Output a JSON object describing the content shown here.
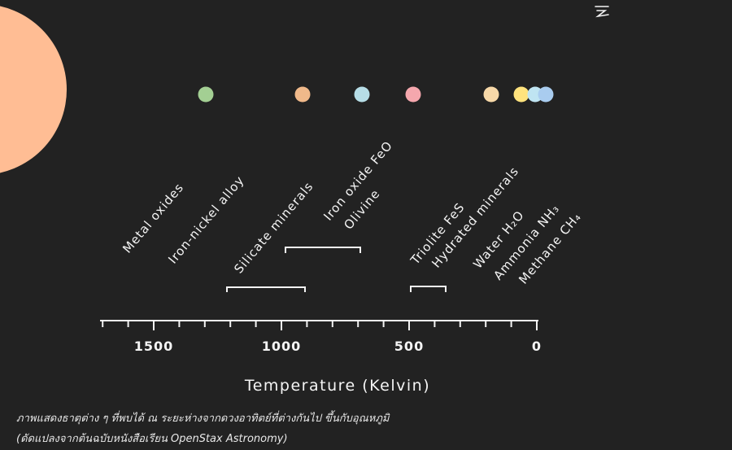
{
  "colors": {
    "background": "#222222",
    "sun": "#ffbd94",
    "line": "#f4f4f4",
    "planets": [
      "#a3cf93",
      "#f0b98a",
      "#b6dde6",
      "#f5a7ad",
      "#f7d8a8",
      "#ffe37d",
      "#bfe4f2",
      "#a9ccef"
    ]
  },
  "icons": {
    "corner": "scribble-icon",
    "sun": "sun-shape"
  },
  "axis": {
    "title": "Temperature (Kelvin)",
    "ticks": [
      {
        "label": "1500",
        "value": 1500
      },
      {
        "label": "1000",
        "value": 1000
      },
      {
        "label": "500",
        "value": 500
      },
      {
        "label": "0",
        "value": 0
      }
    ],
    "range": [
      1700,
      0
    ]
  },
  "materials": [
    {
      "label": "Metal oxides"
    },
    {
      "label": "Iron-nickel alloy"
    },
    {
      "label": "Silicate minerals"
    },
    {
      "label": "Iron oxide FeO"
    },
    {
      "label": "Olivine"
    },
    {
      "label": "Triolite FeS"
    },
    {
      "label": "Hydrated minerals"
    },
    {
      "label": "Water H₂O"
    },
    {
      "label": "Ammonia NH₃"
    },
    {
      "label": "Methane CH₄"
    }
  ],
  "caption": {
    "line1": "ภาพแสดงธาตุต่าง ๆ ที่พบได้ ณ ระยะห่างจากดวงอาทิตย์ที่ต่างกันไป ขึ้นกับอุณหภูมิ",
    "line2": "(ดัดแปลงจากต้นฉบับหนังสือเรียน OpenStax Astronomy)"
  }
}
